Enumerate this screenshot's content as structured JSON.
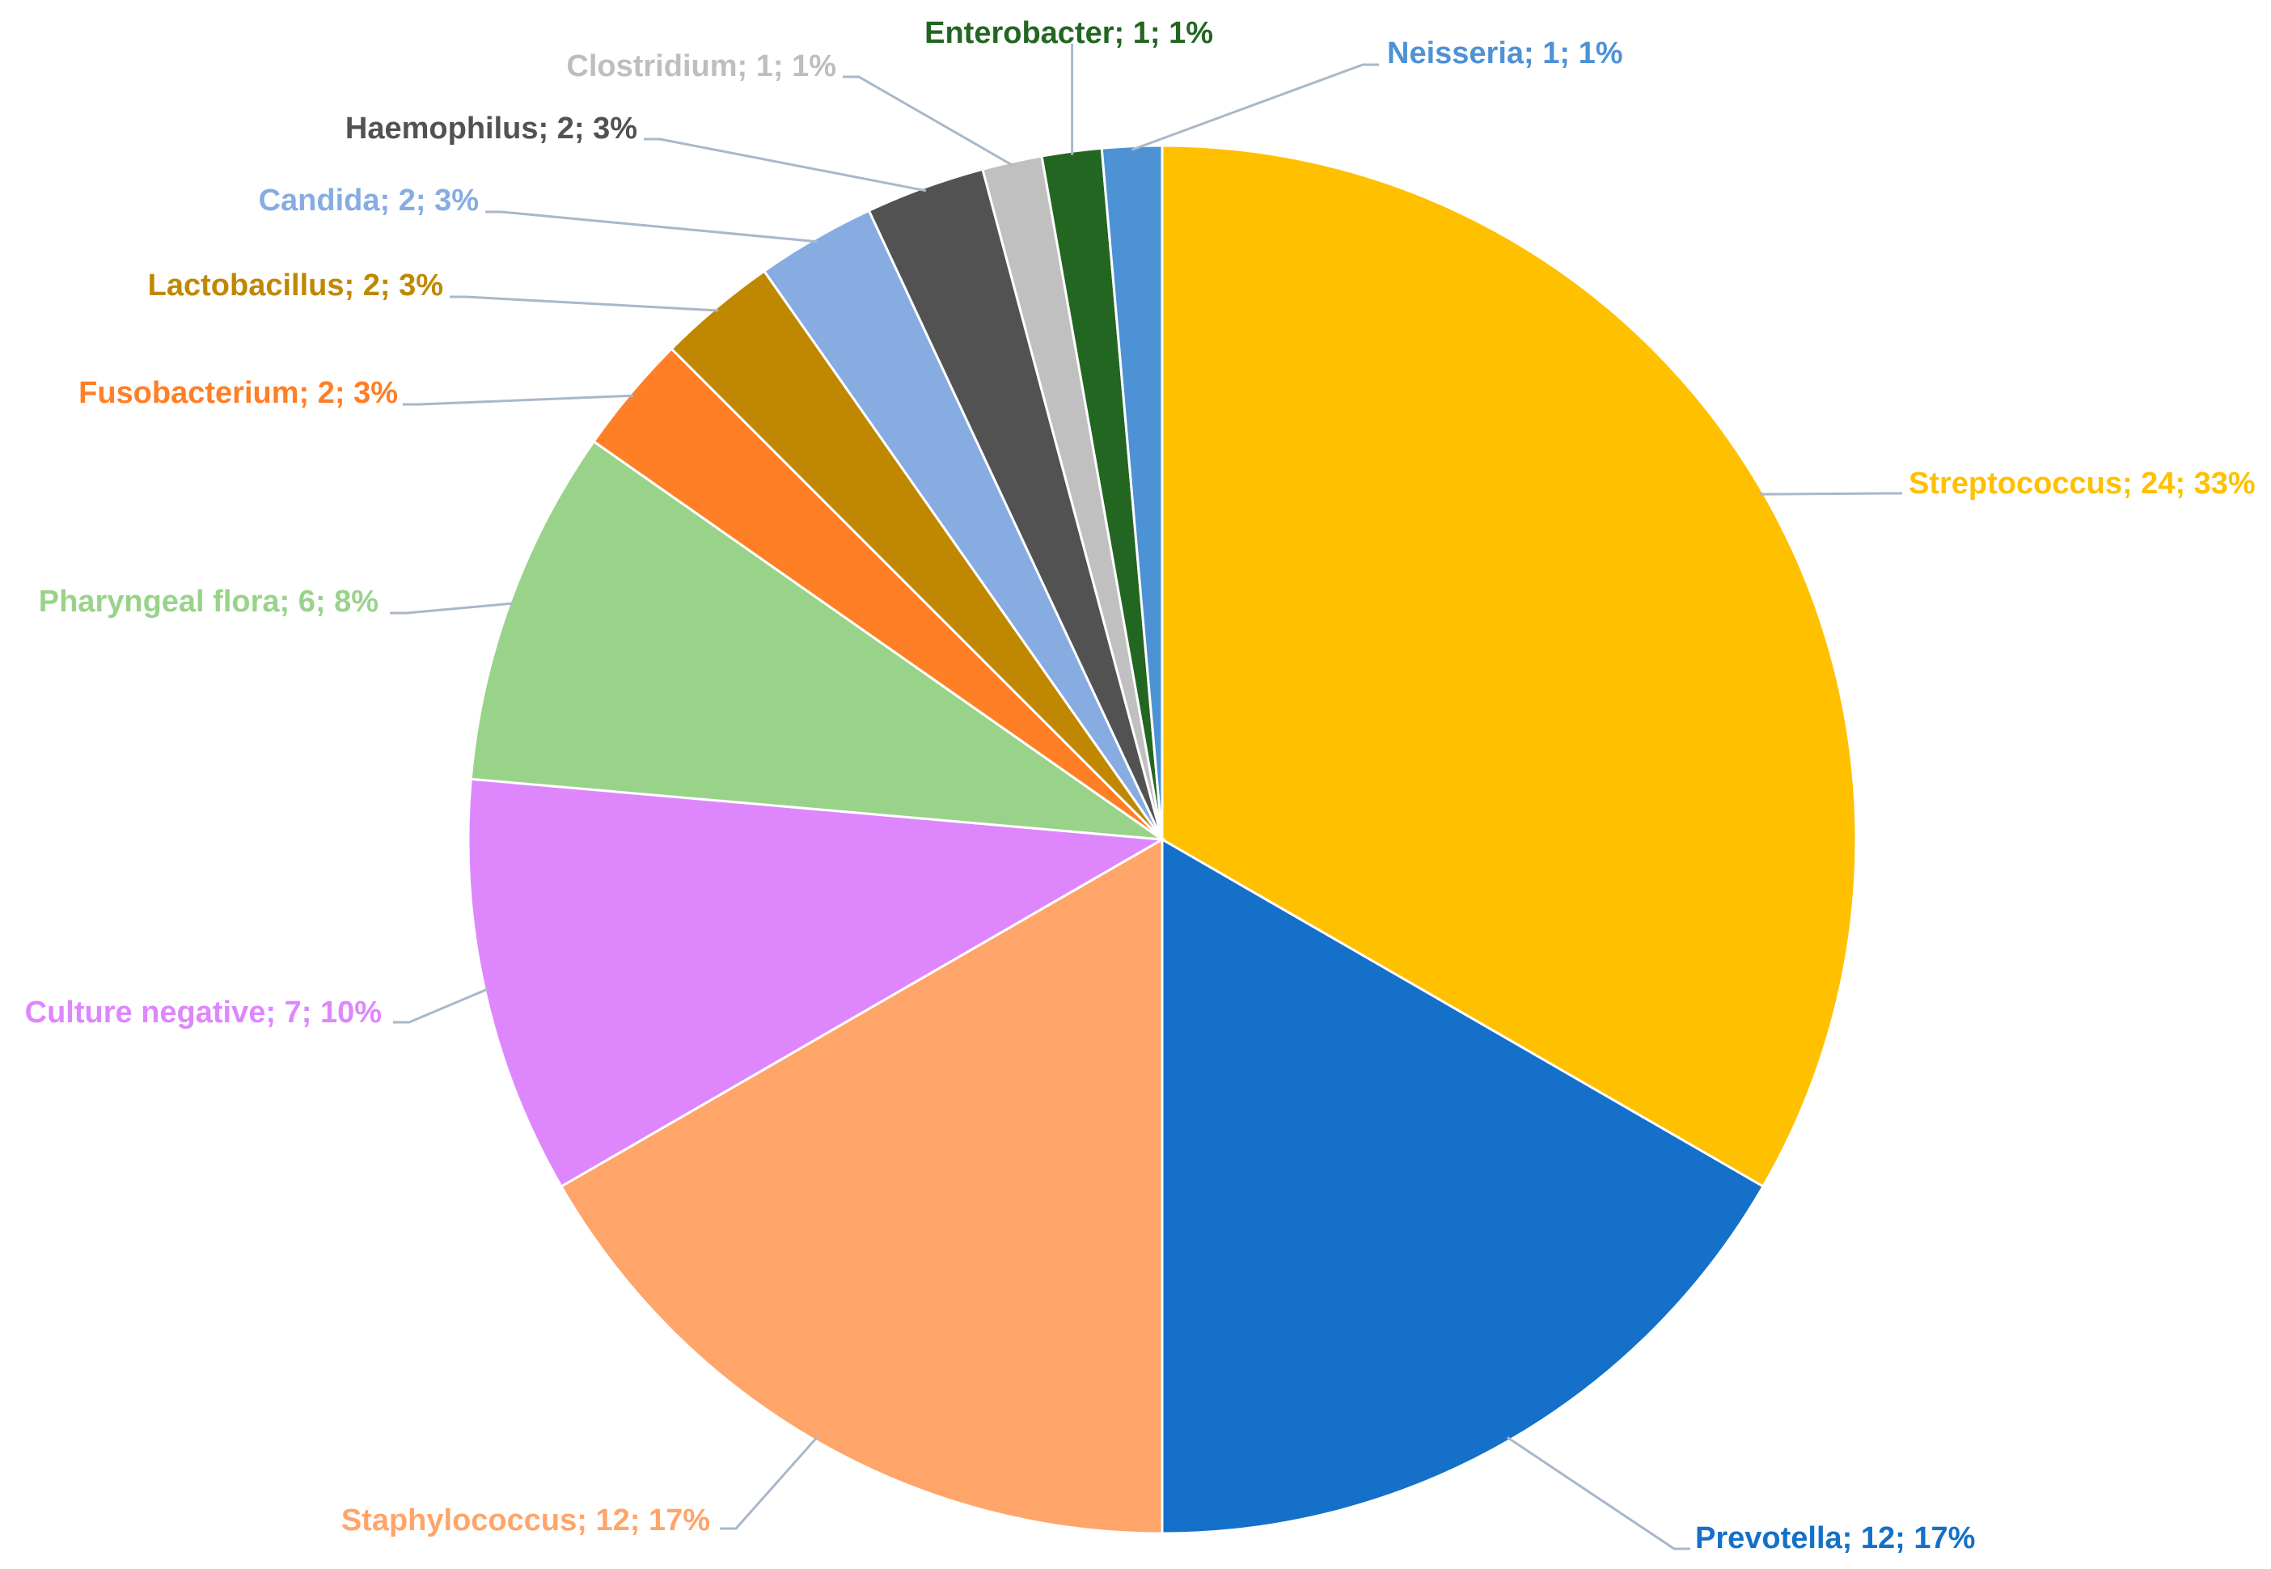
{
  "chart_data": {
    "type": "pie",
    "title": "",
    "start": "12 o'clock",
    "direction": "clockwise",
    "legend": "none",
    "slices": [
      {
        "label": "Streptococcus",
        "value": 24,
        "percent": "33%",
        "color": "#FFC000",
        "text_color": "#FFC000"
      },
      {
        "label": "Prevotella",
        "value": 12,
        "percent": "17%",
        "color": "#1470C8",
        "text_color": "#1470C8"
      },
      {
        "label": "Staphylococcus",
        "value": 12,
        "percent": "17%",
        "color": "#FFA56A",
        "text_color": "#FFA56A"
      },
      {
        "label": "Culture negative",
        "value": 7,
        "percent": "10%",
        "color": "#DE87FD",
        "text_color": "#DE87FD"
      },
      {
        "label": "Pharyngeal flora",
        "value": 6,
        "percent": "8%",
        "color": "#99D38A",
        "text_color": "#99D38A"
      },
      {
        "label": "Fusobacterium",
        "value": 2,
        "percent": "3%",
        "color": "#FF7F27",
        "text_color": "#FF7F27"
      },
      {
        "label": "Lactobacillus",
        "value": 2,
        "percent": "3%",
        "color": "#C08800",
        "text_color": "#C08800"
      },
      {
        "label": "Candida",
        "value": 2,
        "percent": "3%",
        "color": "#86ACE2",
        "text_color": "#86ACE2"
      },
      {
        "label": "Haemophilus",
        "value": 2,
        "percent": "3%",
        "color": "#525252",
        "text_color": "#525252"
      },
      {
        "label": "Clostridium",
        "value": 1,
        "percent": "1%",
        "color": "#C0C0C0",
        "text_color": "#BEBEBE"
      },
      {
        "label": "Enterobacter",
        "value": 1,
        "percent": "1%",
        "color": "#226622",
        "text_color": "#226622"
      },
      {
        "label": "Neisseria",
        "value": 1,
        "percent": "1%",
        "color": "#4E92D6",
        "text_color": "#4E92D6"
      }
    ]
  }
}
